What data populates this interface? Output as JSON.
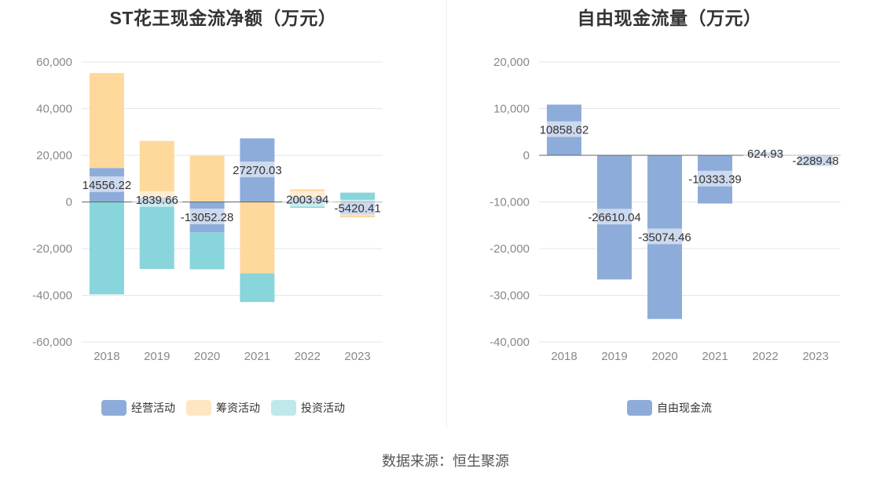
{
  "source_text": "数据来源：恒生聚源",
  "chart_data": [
    {
      "type": "bar",
      "stacked": true,
      "title": "ST花王现金流净额（万元）",
      "categories": [
        "2018",
        "2019",
        "2020",
        "2021",
        "2022",
        "2023"
      ],
      "ylim": [
        -60000,
        60000
      ],
      "yticks": [
        60000,
        40000,
        20000,
        0,
        -20000,
        -40000,
        -60000
      ],
      "ytick_labels": [
        "60,000",
        "40,000",
        "20,000",
        "0",
        "-20,000",
        "-40,000",
        "-60,000"
      ],
      "grid": true,
      "legend_position": "bottom",
      "series": [
        {
          "name": "经营活动",
          "color": "#8eacd9",
          "values": [
            14556.22,
            1839.66,
            -13052.28,
            27270.03,
            2003.94,
            -5420.41
          ]
        },
        {
          "name": "筹资活动",
          "color": "#ffd89c",
          "values": [
            40700,
            24300,
            19800,
            -30600,
            3400,
            -1200
          ]
        },
        {
          "name": "投资活动",
          "color": "#88d5dc",
          "values": [
            -39600,
            -28700,
            -15800,
            -12300,
            -2500,
            4000
          ]
        }
      ],
      "data_labels": [
        "14556.22",
        "1839.66",
        "-13052.28",
        "27270.03",
        "2003.94",
        "-5420.41"
      ],
      "data_label_series": "经营活动"
    },
    {
      "type": "bar",
      "title": "自由现金流量（万元）",
      "categories": [
        "2018",
        "2019",
        "2020",
        "2021",
        "2022",
        "2023"
      ],
      "ylim": [
        -40000,
        20000
      ],
      "yticks": [
        20000,
        10000,
        0,
        -10000,
        -20000,
        -30000,
        -40000
      ],
      "ytick_labels": [
        "20,000",
        "10,000",
        "0",
        "-10,000",
        "-20,000",
        "-30,000",
        "-40,000"
      ],
      "grid": true,
      "legend_position": "bottom",
      "series": [
        {
          "name": "自由现金流",
          "color": "#8eacd9",
          "values": [
            10858.62,
            -26610.04,
            -35074.46,
            -10333.39,
            624.93,
            -2289.48
          ]
        }
      ],
      "data_labels": [
        "10858.62",
        "-26610.04",
        "-35074.46",
        "-10333.39",
        "624.93",
        "-2289.48"
      ]
    }
  ]
}
